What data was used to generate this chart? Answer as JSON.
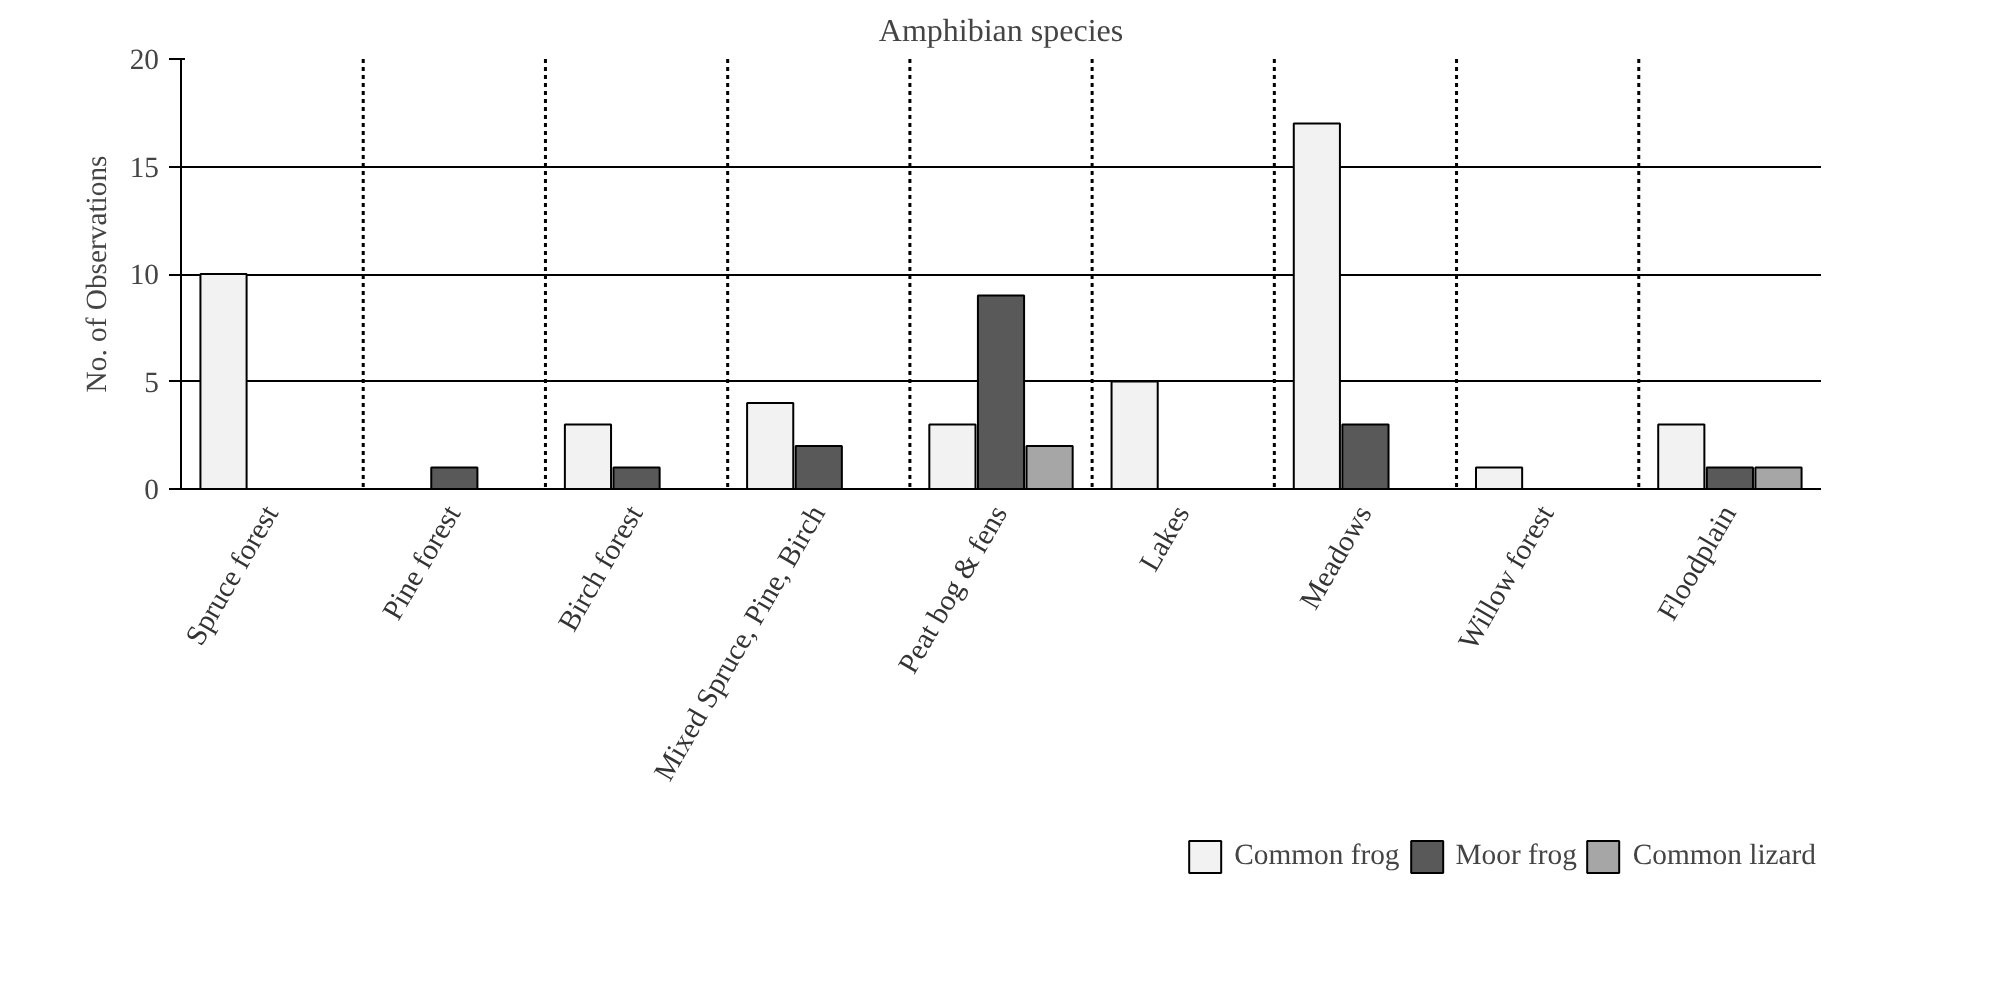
{
  "chart_data": {
    "type": "bar",
    "title": "Amphibian species",
    "ylabel": "No. of Observations",
    "categories": [
      "Spruce forest",
      "Pine forest",
      "Birch forest",
      "Mixed Spruce, Pine, Birch",
      "Peat bog & fens",
      "Lakes",
      "Meadows",
      "Willow forest",
      "Floodplain"
    ],
    "series": [
      {
        "name": "Common frog",
        "color": "#f2f2f2",
        "values": [
          10,
          null,
          3,
          4,
          3,
          5,
          17,
          1,
          3
        ]
      },
      {
        "name": "Moor frog",
        "color": "#595959",
        "values": [
          null,
          1,
          1,
          2,
          9,
          null,
          3,
          null,
          1
        ]
      },
      {
        "name": "Common lizard",
        "color": "#a6a6a6",
        "values": [
          null,
          null,
          null,
          null,
          2,
          null,
          null,
          null,
          1
        ]
      }
    ],
    "ylim": [
      0,
      20
    ],
    "yticks": [
      0,
      5,
      10,
      15,
      20
    ],
    "grid": true,
    "legend": "bottom"
  }
}
